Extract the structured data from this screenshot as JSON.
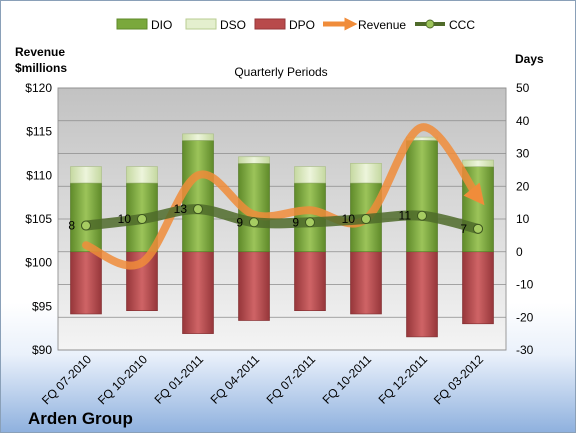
{
  "chart_data": {
    "type": "bar",
    "title": "Quarterly Periods",
    "company": "Arden Group",
    "left_axis_label_line1": "Revenue",
    "left_axis_label_line2": "$millions",
    "right_axis_label": "Days",
    "categories": [
      "FQ 07-2010",
      "FQ 10-2010",
      "FQ 01-2011",
      "FQ 04-2011",
      "FQ 07-2011",
      "FQ 10-2011",
      "FQ 12-2011",
      "FQ 03-2012"
    ],
    "left_axis": {
      "min": 90,
      "max": 120,
      "step": 5,
      "ticks": [
        "$90",
        "$95",
        "$100",
        "$105",
        "$110",
        "$115",
        "$120"
      ]
    },
    "right_axis": {
      "min": -30,
      "max": 50,
      "step": 10,
      "ticks": [
        "-30",
        "-20",
        "-10",
        "0",
        "10",
        "20",
        "30",
        "40",
        "50"
      ]
    },
    "legend": {
      "position": "top",
      "items": [
        "DIO",
        "DSO",
        "DPO",
        "Revenue",
        "CCC"
      ]
    },
    "grid": true,
    "series": [
      {
        "name": "DIO",
        "values": [
          21,
          21,
          34,
          27,
          21,
          21,
          34,
          26
        ],
        "color": "#7aa83c"
      },
      {
        "name": "DSO",
        "values": [
          5,
          5,
          2,
          2,
          5,
          6,
          1,
          2
        ],
        "color": "#d7e6b5"
      },
      {
        "name": "DPO",
        "values": [
          -19,
          -18,
          -25,
          -21,
          -18,
          -19,
          -26,
          -22
        ],
        "color": "#b84a4b"
      },
      {
        "name": "CCC",
        "values": [
          8,
          10,
          13,
          9,
          9,
          10,
          11,
          7
        ],
        "labels": [
          "8",
          "10",
          "13",
          "9",
          "9",
          "10",
          "11",
          "7"
        ],
        "color": "#4f6b2a"
      },
      {
        "name": "Revenue",
        "values": [
          102.0,
          100.0,
          110.0,
          105.5,
          106.0,
          105.0,
          115.5,
          107.5
        ],
        "color": "#f08c3a"
      }
    ]
  }
}
